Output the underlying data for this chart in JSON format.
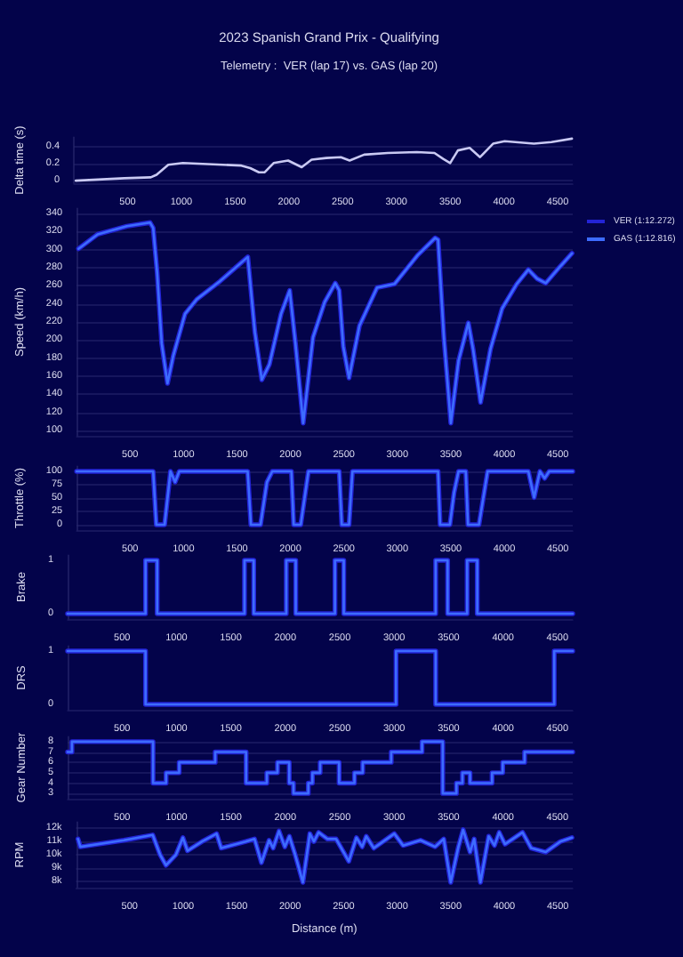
{
  "chart_data": [
    {
      "type": "line",
      "title": "2023 Spanish Grand Prix - Qualifying",
      "subtitle": "Telemetry :  VER (lap 17) vs. GAS (lap 20)",
      "ylabel": "Delta time (s)",
      "x": [
        18,
        470,
        715,
        769,
        878,
        1014,
        1558,
        1640,
        1721,
        1775,
        1858,
        1993,
        2119,
        2211,
        2348,
        2483,
        2565,
        2700,
        2919,
        3190,
        3354,
        3435,
        3500,
        3572,
        3681,
        3778,
        3899,
        4007,
        4279,
        4442,
        4633
      ],
      "series": [
        {
          "color": "#c9c9f2",
          "values": [
            0,
            0.03,
            0.04,
            0.07,
            0.19,
            0.21,
            0.18,
            0.15,
            0.1,
            0.1,
            0.21,
            0.24,
            0.16,
            0.25,
            0.27,
            0.28,
            0.24,
            0.31,
            0.33,
            0.34,
            0.33,
            0.26,
            0.21,
            0.36,
            0.39,
            0.28,
            0.44,
            0.47,
            0.44,
            0.46,
            0.5
          ]
        }
      ],
      "xlim": [
        0,
        4640
      ],
      "xticks": [
        500,
        1000,
        1500,
        2000,
        2500,
        3000,
        3500,
        4000,
        4500
      ],
      "ylim": [
        -0.03,
        0.52
      ],
      "yticks": [
        0,
        0.2,
        0.4
      ],
      "grid": "y"
    },
    {
      "type": "line",
      "ylabel": "Speed (km/h)",
      "legend": "top right",
      "x": [
        18,
        197,
        470,
        687,
        716,
        753,
        796,
        850,
        905,
        1014,
        1123,
        1340,
        1601,
        1667,
        1732,
        1803,
        1912,
        1993,
        2047,
        2119,
        2211,
        2320,
        2419,
        2456,
        2494,
        2548,
        2646,
        2810,
        2973,
        3190,
        3354,
        3381,
        3435,
        3500,
        3572,
        3664,
        3708,
        3778,
        3871,
        3980,
        4116,
        4225,
        4306,
        4388,
        4497,
        4633
      ],
      "series": [
        {
          "name": "VER (1:12.272)",
          "color": "#2323d6",
          "values": [
            301,
            317,
            326,
            330,
            324,
            275,
            196,
            152,
            183,
            229,
            245,
            265,
            292,
            209,
            156,
            173,
            229,
            255,
            196,
            108,
            203,
            242,
            263,
            255,
            193,
            158,
            216,
            258,
            262,
            294,
            313,
            311,
            203,
            108,
            177,
            219,
            190,
            131,
            190,
            235,
            262,
            278,
            268,
            263,
            278,
            296
          ]
        },
        {
          "name": "GAS (1:12.816)",
          "color": "#3d6cff",
          "values": [
            301,
            317,
            326,
            330,
            324,
            275,
            196,
            152,
            183,
            229,
            245,
            265,
            292,
            209,
            156,
            173,
            229,
            255,
            196,
            108,
            203,
            242,
            263,
            255,
            193,
            158,
            216,
            258,
            262,
            294,
            313,
            311,
            203,
            108,
            177,
            219,
            190,
            131,
            190,
            235,
            262,
            278,
            268,
            263,
            278,
            296
          ]
        }
      ],
      "xlim": [
        0,
        4640
      ],
      "xticks": [
        500,
        1000,
        1500,
        2000,
        2500,
        3000,
        3500,
        4000,
        4500
      ],
      "ylim": [
        94,
        346
      ],
      "yticks": [
        100,
        120,
        140,
        160,
        180,
        200,
        220,
        240,
        260,
        280,
        300,
        320,
        340
      ],
      "grid": "y"
    },
    {
      "type": "line",
      "ylabel": "Throttle (%)",
      "x": [
        0,
        716,
        745,
        823,
        878,
        921,
        960,
        1600,
        1630,
        1720,
        1780,
        1830,
        2009,
        2030,
        2096,
        2168,
        2456,
        2480,
        2548,
        2580,
        3381,
        3400,
        3491,
        3530,
        3572,
        3640,
        3660,
        3763,
        3844,
        4225,
        4279,
        4333,
        4377,
        4420,
        4640
      ],
      "series": [
        {
          "color": "#2323d6",
          "values": [
            100,
            100,
            0,
            0,
            100,
            80,
            100,
            100,
            0,
            0,
            80,
            100,
            100,
            0,
            0,
            100,
            100,
            0,
            0,
            100,
            100,
            0,
            0,
            60,
            100,
            100,
            0,
            0,
            100,
            100,
            51,
            100,
            87,
            100,
            100
          ]
        },
        {
          "color": "#3d6cff",
          "values": [
            100,
            100,
            0,
            0,
            100,
            80,
            100,
            100,
            0,
            0,
            80,
            100,
            100,
            0,
            0,
            100,
            100,
            0,
            0,
            100,
            100,
            0,
            0,
            60,
            100,
            100,
            0,
            0,
            100,
            100,
            51,
            100,
            87,
            100,
            100
          ]
        }
      ],
      "xlim": [
        0,
        4640
      ],
      "xticks": [
        500,
        1000,
        1500,
        2000,
        2500,
        3000,
        3500,
        4000,
        4500
      ],
      "ylim": [
        -10,
        110
      ],
      "yticks": [
        0,
        25,
        50,
        75,
        100
      ],
      "grid": "y"
    },
    {
      "type": "step",
      "ylabel": "Brake",
      "x": [
        0,
        716,
        823,
        1625,
        1710,
        2009,
        2096,
        2456,
        2537,
        3381,
        3491,
        3670,
        3763,
        4640
      ],
      "series": [
        {
          "color": "#2323d6",
          "values": [
            0,
            1,
            0,
            1,
            0,
            1,
            0,
            1,
            0,
            1,
            0,
            1,
            0,
            0
          ]
        },
        {
          "color": "#3d6cff",
          "values": [
            0,
            1,
            0,
            1,
            0,
            1,
            0,
            1,
            0,
            1,
            0,
            1,
            0,
            0
          ]
        }
      ],
      "xlim": [
        0,
        4640
      ],
      "xticks": [
        500,
        1000,
        1500,
        2000,
        2500,
        3000,
        3500,
        4000,
        4500
      ],
      "ylim": [
        -0.1,
        1.1
      ],
      "yticks": [
        0,
        1
      ]
    },
    {
      "type": "step",
      "ylabel": "DRS",
      "x": [
        0,
        716,
        3017,
        3381,
        4470,
        4640
      ],
      "series": [
        {
          "color": "#2323d6",
          "values": [
            1,
            0,
            1,
            0,
            1,
            1
          ]
        },
        {
          "color": "#3d6cff",
          "values": [
            1,
            0,
            1,
            0,
            1,
            1
          ]
        }
      ],
      "xlim": [
        0,
        4640
      ],
      "xticks": [
        500,
        1000,
        1500,
        2000,
        2500,
        3000,
        3500,
        4000,
        4500
      ],
      "ylim": [
        -0.1,
        1.1
      ],
      "yticks": [
        0,
        1
      ]
    },
    {
      "type": "step",
      "ylabel": "Gear Number",
      "x": [
        0,
        40,
        785,
        905,
        1025,
        1356,
        1640,
        1830,
        1928,
        2036,
        2075,
        2211,
        2249,
        2320,
        2494,
        2635,
        2711,
        2973,
        3256,
        3446,
        3572,
        3627,
        3697,
        3899,
        3997,
        4198,
        4640
      ],
      "series": [
        {
          "color": "#2323d6",
          "values": [
            7,
            8,
            4,
            5,
            6,
            7,
            4,
            5,
            6,
            4,
            3,
            4,
            5,
            6,
            4,
            5,
            6,
            7,
            8,
            3,
            4,
            5,
            4,
            5,
            6,
            7,
            7
          ]
        },
        {
          "color": "#3d6cff",
          "values": [
            7,
            8,
            4,
            5,
            6,
            7,
            4,
            5,
            6,
            4,
            3,
            4,
            5,
            6,
            4,
            5,
            6,
            7,
            8,
            3,
            4,
            5,
            4,
            5,
            6,
            7,
            7
          ]
        }
      ],
      "xlim": [
        0,
        4640
      ],
      "xticks": [
        500,
        1000,
        1500,
        2000,
        2500,
        3000,
        3500,
        4000,
        4500
      ],
      "ylim": [
        2.5,
        8.5
      ],
      "yticks": [
        3,
        4,
        5,
        6,
        7,
        8
      ],
      "grid": "y"
    },
    {
      "type": "line",
      "ylabel": "RPM",
      "xlabel": "Distance (m)",
      "x": [
        18,
        40,
        446,
        716,
        785,
        840,
        933,
        998,
        1041,
        1177,
        1313,
        1356,
        1585,
        1667,
        1732,
        1803,
        1841,
        1896,
        1950,
        1993,
        2047,
        2119,
        2184,
        2222,
        2266,
        2348,
        2429,
        2548,
        2619,
        2673,
        2711,
        2781,
        2973,
        3055,
        3218,
        3354,
        3435,
        3500,
        3572,
        3616,
        3681,
        3719,
        3778,
        3855,
        3909,
        3953,
        4007,
        4171,
        4252,
        4388,
        4524,
        4633
      ],
      "series": [
        {
          "color": "#2323d6",
          "values": [
            11200,
            10600,
            11100,
            11500,
            10000,
            9200,
            10000,
            11300,
            10300,
            11000,
            11600,
            10500,
            11000,
            11200,
            9400,
            11100,
            10500,
            11800,
            10600,
            11400,
            10000,
            7900,
            11600,
            11000,
            11700,
            11200,
            11200,
            9500,
            11300,
            10600,
            11400,
            10500,
            11600,
            10700,
            11100,
            10600,
            11200,
            7900,
            10600,
            11900,
            10200,
            11200,
            7900,
            11400,
            10700,
            11700,
            10800,
            11700,
            10500,
            10200,
            11000,
            11300
          ]
        },
        {
          "color": "#3d6cff",
          "values": [
            11200,
            10600,
            11100,
            11500,
            10000,
            9200,
            10000,
            11300,
            10300,
            11000,
            11600,
            10500,
            11000,
            11200,
            9400,
            11100,
            10500,
            11800,
            10600,
            11400,
            10000,
            7900,
            11600,
            11000,
            11700,
            11200,
            11200,
            9500,
            11300,
            10600,
            11400,
            10500,
            11600,
            10700,
            11100,
            10600,
            11200,
            7900,
            10600,
            11900,
            10200,
            11200,
            7900,
            11400,
            10700,
            11700,
            10800,
            11700,
            10500,
            10200,
            11000,
            11300
          ]
        }
      ],
      "xlim": [
        0,
        4640
      ],
      "xticks": [
        500,
        1000,
        1500,
        2000,
        2500,
        3000,
        3500,
        4000,
        4500
      ],
      "ylim": [
        7500,
        12500
      ],
      "yticks": [
        {
          "value": 8000,
          "label": "8k"
        },
        {
          "value": 9000,
          "label": "9k"
        },
        {
          "value": 10000,
          "label": "10k"
        },
        {
          "value": 11000,
          "label": "11k"
        },
        {
          "value": 12000,
          "label": "12k"
        }
      ],
      "grid": "y"
    }
  ]
}
